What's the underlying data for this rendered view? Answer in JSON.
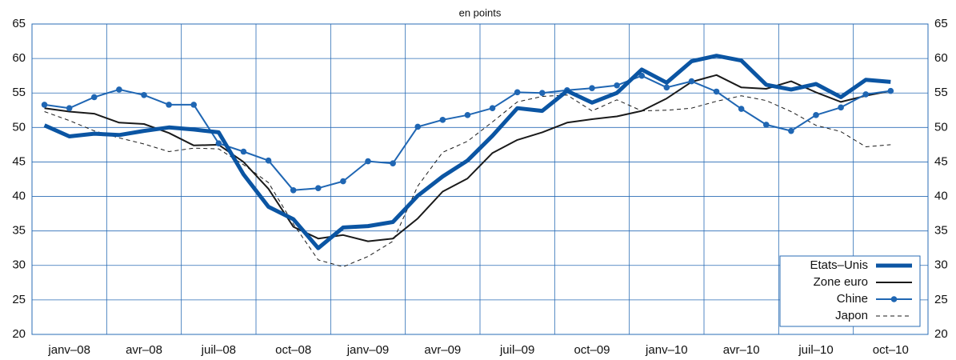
{
  "chart_data": {
    "type": "line",
    "title": "en points",
    "categories": [
      "janv–08",
      null,
      null,
      "avr–08",
      null,
      null,
      "juil–08",
      null,
      null,
      "oct–08",
      null,
      null,
      "janv–09",
      null,
      null,
      "avr–09",
      null,
      null,
      "juil–09",
      null,
      null,
      "oct–09",
      null,
      null,
      "janv–10",
      null,
      null,
      "avr–10",
      null,
      null,
      "juil–10",
      null,
      null,
      "oct–10",
      null
    ],
    "ylim": [
      20,
      65
    ],
    "yticks": [
      20,
      25,
      30,
      35,
      40,
      45,
      50,
      55,
      60,
      65
    ],
    "y2lim": [
      20,
      65
    ],
    "y2ticks": [
      20,
      25,
      30,
      35,
      40,
      45,
      50,
      55,
      60,
      65
    ],
    "grid": true,
    "legend": "bottom-right",
    "series": [
      {
        "name": "Etats–Unis",
        "color": "#0b55a3",
        "line_style": "thick",
        "marker": false,
        "values": [
          50.3,
          48.7,
          49.1,
          48.9,
          49.5,
          50.0,
          49.7,
          49.3,
          43.2,
          38.5,
          36.7,
          32.5,
          35.5,
          35.7,
          36.3,
          40.1,
          42.9,
          45.2,
          48.8,
          52.8,
          52.4,
          55.3,
          53.6,
          55.0,
          58.4,
          56.5,
          59.6,
          60.4,
          59.7,
          56.2,
          55.5,
          56.3,
          54.4,
          56.9,
          56.6
        ]
      },
      {
        "name": "Zone euro",
        "color": "#1a1a1a",
        "line_style": "solid",
        "marker": false,
        "values": [
          52.8,
          52.3,
          52.0,
          50.7,
          50.5,
          49.2,
          47.4,
          47.5,
          45.0,
          41.1,
          35.6,
          33.9,
          34.4,
          33.5,
          33.9,
          36.8,
          40.7,
          42.6,
          46.3,
          48.2,
          49.3,
          50.7,
          51.2,
          51.6,
          52.4,
          54.2,
          56.6,
          57.6,
          55.8,
          55.6,
          56.7,
          55.1,
          53.7,
          54.6,
          55.3
        ]
      },
      {
        "name": "Chine",
        "color": "#1f66b3",
        "line_style": "solid",
        "marker": true,
        "values": [
          53.3,
          52.8,
          54.4,
          55.5,
          54.7,
          53.3,
          53.3,
          47.7,
          46.5,
          45.2,
          40.9,
          41.2,
          42.2,
          45.1,
          44.8,
          50.1,
          51.1,
          51.8,
          52.8,
          55.1,
          55.0,
          55.4,
          55.7,
          56.1,
          57.5,
          55.8,
          56.7,
          55.2,
          52.7,
          50.4,
          49.5,
          51.8,
          52.9,
          54.8,
          55.3
        ]
      },
      {
        "name": "Japon",
        "color": "#1a1a1a",
        "line_style": "dashed",
        "marker": false,
        "values": [
          52.3,
          51.0,
          49.5,
          48.5,
          47.6,
          46.5,
          47.0,
          46.9,
          44.6,
          42.0,
          36.0,
          30.8,
          29.8,
          31.3,
          33.5,
          41.5,
          46.4,
          48.0,
          50.8,
          53.7,
          54.5,
          54.7,
          52.4,
          54.0,
          52.4,
          52.5,
          52.8,
          53.8,
          54.6,
          53.9,
          52.3,
          50.3,
          49.4,
          47.2,
          47.5
        ]
      }
    ]
  }
}
